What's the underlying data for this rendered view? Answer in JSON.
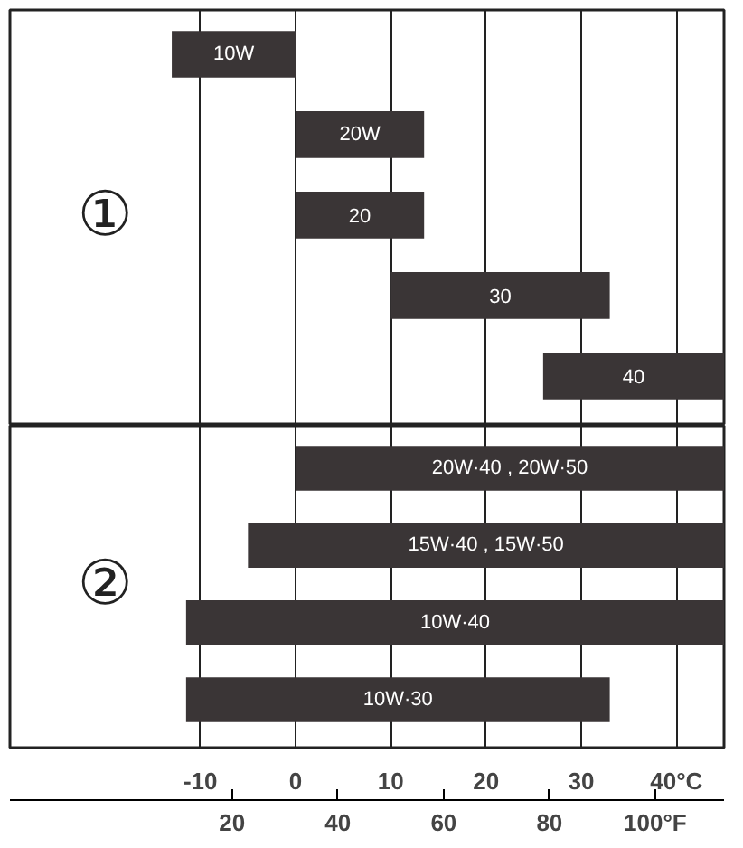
{
  "chart_data": [
    {
      "type": "bar",
      "orientation": "horizontal",
      "categories": [
        "10W",
        "20W",
        "20",
        "30",
        "40"
      ],
      "base": [
        -13,
        0,
        0,
        10,
        26
      ],
      "values": [
        13,
        13.5,
        13.5,
        23,
        19
      ],
      "color": "#3a3536",
      "xlim": [
        -30,
        45
      ],
      "xticks": [
        -10,
        0,
        10,
        20,
        30,
        40
      ],
      "grid": "x",
      "tick_labels": false,
      "annotations": [
        "①"
      ]
    },
    {
      "type": "bar",
      "orientation": "horizontal",
      "categories": [
        "20W·40 , 20W·50",
        "15W·40 , 15W·50",
        "10W·40",
        "10W·30"
      ],
      "base": [
        0,
        -5,
        -11.5,
        -11.5
      ],
      "values": [
        45,
        50,
        56.5,
        44.5
      ],
      "color": "#3a3536",
      "xlim": [
        -30,
        45
      ],
      "xticks": [
        -10,
        0,
        10,
        20,
        30,
        {
          "value": 40,
          "label": "40°C"
        }
      ],
      "x2lim": [
        -22,
        113
      ],
      "x2ticks": [
        20,
        40,
        60,
        80,
        {
          "value": 100,
          "label": "100°F"
        }
      ],
      "grid": "x",
      "tick_labels": "x",
      "annotations": [
        "②"
      ]
    }
  ]
}
